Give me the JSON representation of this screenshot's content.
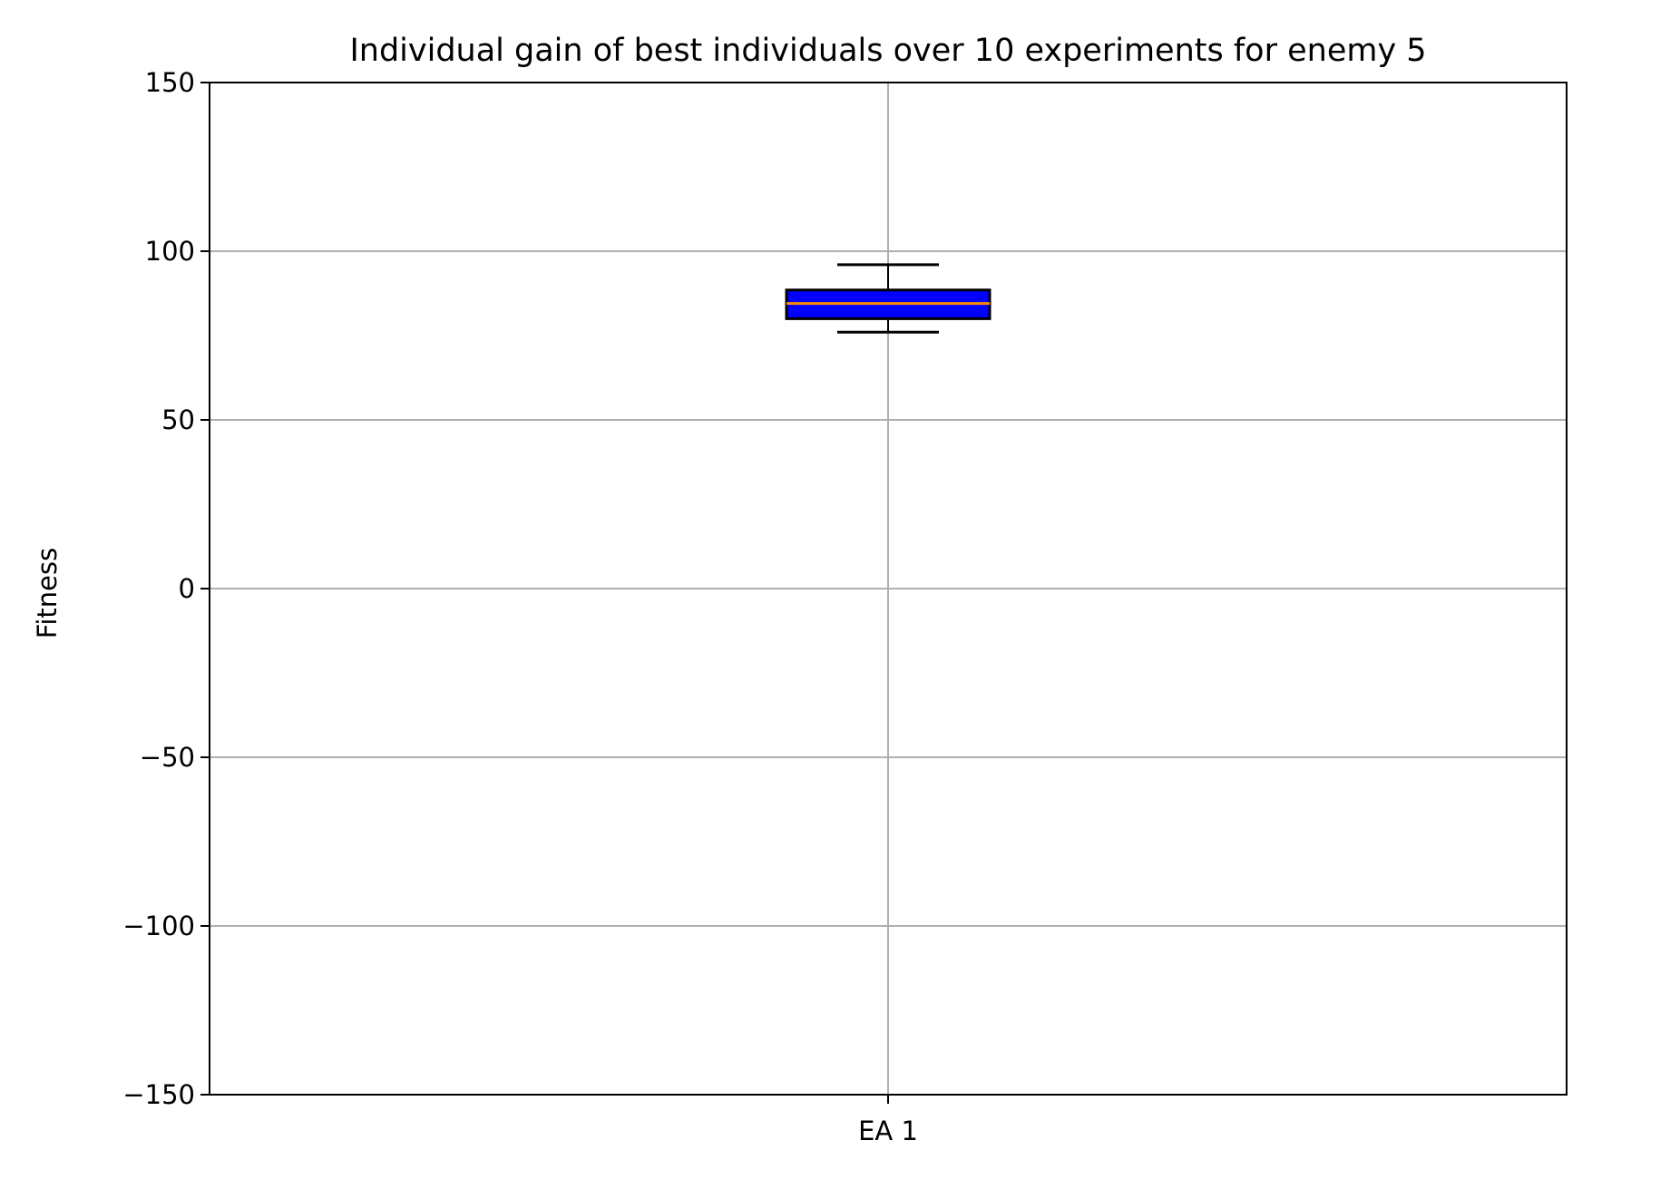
{
  "chart_data": {
    "type": "box",
    "title": "Individual gain of best individuals over 10 experiments for enemy 5",
    "xlabel": "",
    "ylabel": "Fitness",
    "categories": [
      "EA 1"
    ],
    "series": [
      {
        "name": "EA 1",
        "whisker_low": 76,
        "q1": 80,
        "median": 84.5,
        "q3": 88.5,
        "whisker_high": 96
      }
    ],
    "ylim": [
      -150,
      150
    ],
    "yticks": [
      {
        "value": -150,
        "label": "−150"
      },
      {
        "value": -100,
        "label": "−100"
      },
      {
        "value": -50,
        "label": "−50"
      },
      {
        "value": 0,
        "label": "0"
      },
      {
        "value": 50,
        "label": "50"
      },
      {
        "value": 100,
        "label": "100"
      },
      {
        "value": 150,
        "label": "150"
      }
    ],
    "grid": true,
    "colors": {
      "box_fill": "#0000ff",
      "box_edge": "#000000",
      "median": "#ff8c00",
      "whisker": "#000000",
      "grid": "#b0b0b0",
      "axes": "#000000"
    }
  }
}
